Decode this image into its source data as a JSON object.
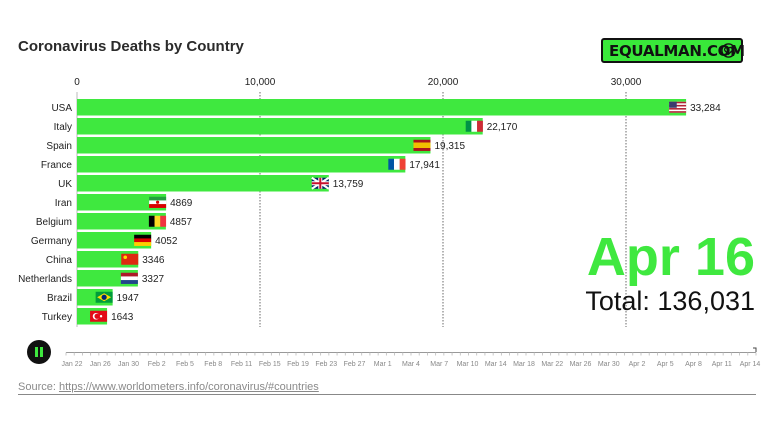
{
  "page": {
    "title": "Coronavirus Deaths by Country",
    "brand": "EQUALMAN.COM",
    "current_date": "Apr 16",
    "total_label": "Total: 136,031",
    "source_prefix": "Source: ",
    "source_url": "https://www.worldometers.info/coronavirus/#countries",
    "accent": "#3fe83f"
  },
  "timeline": {
    "labels": [
      "Jan 22",
      "Jan 26",
      "Jan 30",
      "Feb 2",
      "Feb 5",
      "Feb 8",
      "Feb 11",
      "Feb 15",
      "Feb 19",
      "Feb 23",
      "Feb 27",
      "Mar 1",
      "Mar 4",
      "Mar 7",
      "Mar 10",
      "Mar 14",
      "Mar 18",
      "Mar 22",
      "Mar 26",
      "Mar 30",
      "Apr 2",
      "Apr 5",
      "Apr 8",
      "Apr 11",
      "Apr 14"
    ]
  },
  "chart_data": {
    "type": "bar",
    "orientation": "horizontal",
    "title": "Coronavirus Deaths by Country",
    "categories": [
      "USA",
      "Italy",
      "Spain",
      "France",
      "UK",
      "Iran",
      "Belgium",
      "Germany",
      "China",
      "Netherlands",
      "Brazil",
      "Turkey"
    ],
    "values": [
      33284,
      22170,
      19315,
      17941,
      13759,
      4869,
      4857,
      4052,
      3346,
      3327,
      1947,
      1643
    ],
    "value_labels": [
      "33,284",
      "22,170",
      "19,315",
      "17,941",
      "13,759",
      "4869",
      "4857",
      "4052",
      "3346",
      "3327",
      "1947",
      "1643"
    ],
    "flags": [
      "us-flag-icon",
      "italy-flag-icon",
      "spain-flag-icon",
      "france-flag-icon",
      "uk-flag-icon",
      "iran-flag-icon",
      "belgium-flag-icon",
      "germany-flag-icon",
      "china-flag-icon",
      "netherlands-flag-icon",
      "brazil-flag-icon",
      "turkey-flag-icon"
    ],
    "xticks": [
      0,
      10000,
      20000,
      30000
    ],
    "xtick_labels": [
      "0",
      "10,000",
      "20,000",
      "30,000"
    ],
    "xlim": [
      0,
      37000
    ],
    "grid": true,
    "bar_color": "#3fe83f"
  }
}
